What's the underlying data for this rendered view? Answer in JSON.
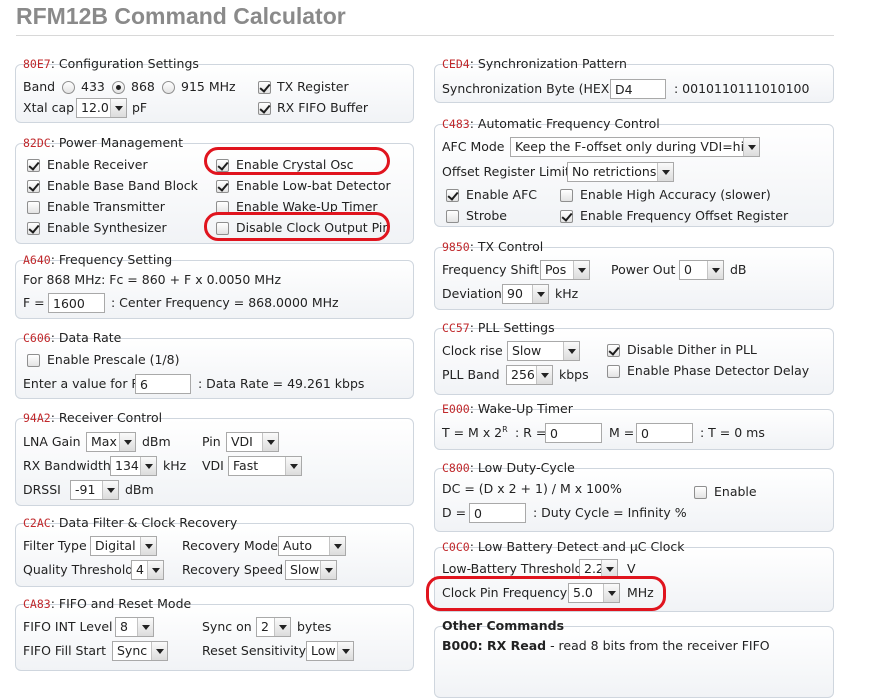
{
  "title": "RFM12B Command Calculator",
  "config": {
    "code": "80E7",
    "title": ": Configuration Settings",
    "band_label": "Band",
    "band_433": "433",
    "band_868": "868",
    "band_915": "915 MHz",
    "xtal_label": "Xtal cap",
    "xtal_value": "12.0",
    "xtal_unit": "pF",
    "tx_register": "TX Register",
    "rx_fifo": "RX FIFO Buffer"
  },
  "power": {
    "code": "82DC",
    "title": ": Power Management",
    "receiver": "Enable Receiver",
    "crystal": "Enable Crystal Osc",
    "baseband": "Enable Base Band Block",
    "lowbat": "Enable Low-bat Detector",
    "transmitter": "Enable Transmitter",
    "wakeup": "Enable Wake-Up Timer",
    "synth": "Enable Synthesizer",
    "clkout": "Disable Clock Output Pin"
  },
  "freq": {
    "code": "A640",
    "title": ": Frequency Setting",
    "formula": "For 868 MHz: Fc = 860 + F x 0.0050 MHz",
    "f_label": "F =",
    "f_value": "1600",
    "center": ": Center Frequency = 868.0000 MHz"
  },
  "datarate": {
    "code": "C606",
    "title": ": Data Rate",
    "prescale": "Enable Prescale (1/8)",
    "r_label": "Enter a value for R",
    "r_value": "6",
    "rate": ": Data Rate = 49.261 kbps"
  },
  "rxctrl": {
    "code": "94A2",
    "title": ": Receiver Control",
    "lna_label": "LNA Gain",
    "lna_value": "Max",
    "lna_unit": "dBm",
    "pin_label": "Pin",
    "pin_value": "VDI",
    "bw_label": "RX Bandwidth",
    "bw_value": "134",
    "bw_unit": "kHz",
    "vdi_label": "VDI",
    "vdi_value": "Fast",
    "drssi_label": "DRSSI",
    "drssi_value": "-91",
    "drssi_unit": "dBm"
  },
  "filter": {
    "code": "C2AC",
    "title": ": Data Filter & Clock Recovery",
    "type_label": "Filter Type",
    "type_value": "Digital",
    "mode_label": "Recovery Mode",
    "mode_value": "Auto",
    "qt_label": "Quality Threshold",
    "qt_value": "4",
    "speed_label": "Recovery Speed",
    "speed_value": "Slow"
  },
  "fifo": {
    "code": "CA83",
    "title": ": FIFO and Reset Mode",
    "int_label": "FIFO INT Level",
    "int_value": "8",
    "sync_label": "Sync on",
    "sync_value": "2",
    "sync_unit": "bytes",
    "fill_label": "FIFO Fill Start",
    "fill_value": "Sync",
    "reset_label": "Reset Sensitivity",
    "reset_value": "Low"
  },
  "syncpat": {
    "code": "CED4",
    "title": ": Synchronization Pattern",
    "label": "Synchronization Byte (HEX)",
    "value": "D4",
    "binary": ": 0010110111010100"
  },
  "afc": {
    "code": "C483",
    "title": ": Automatic Frequency Control",
    "mode_label": "AFC Mode",
    "mode_value": "Keep the F-offset only during VDI=high",
    "limit_label": "Offset Register Limit",
    "limit_value": "No retrictions",
    "enable": "Enable AFC",
    "high_acc": "Enable High Accuracy (slower)",
    "strobe": "Strobe",
    "offset_reg": "Enable Frequency Offset Register"
  },
  "tx": {
    "code": "9850",
    "title": ": TX Control",
    "shift_label": "Frequency Shift",
    "shift_value": "Pos",
    "power_label": "Power Out",
    "power_value": "0",
    "power_unit": "dB",
    "dev_label": "Deviation",
    "dev_value": "90",
    "dev_unit": "kHz"
  },
  "pll": {
    "code": "CC57",
    "title": ": PLL Settings",
    "rise_label": "Clock rise",
    "rise_value": "Slow",
    "dither": "Disable Dither in PLL",
    "band_label": "PLL Band",
    "band_value": "256",
    "band_unit": "kbps",
    "phase": "Enable Phase Detector Delay"
  },
  "wake": {
    "code": "E000",
    "title": ": Wake-Up Timer",
    "t_label": "T = M x 2",
    "t_sup": "R",
    "r_label": ": R =",
    "r_value": "0",
    "m_label": "M =",
    "m_value": "0",
    "t_result": ": T = 0 ms"
  },
  "duty": {
    "code": "C800",
    "title": ": Low Duty-Cycle",
    "formula": "DC = (D x 2 + 1) / M x 100%",
    "enable": "Enable",
    "d_label": "D =",
    "d_value": "0",
    "result": ": Duty Cycle = Infinity %"
  },
  "lowbat": {
    "code": "C0C0",
    "title": ": Low Battery Detect and µC Clock",
    "thr_label": "Low-Battery Threshold",
    "thr_value": "2.2",
    "thr_unit": "V",
    "clk_label": "Clock Pin Frequency",
    "clk_value": "5.0",
    "clk_unit": "MHz"
  },
  "other": {
    "title": "Other Commands",
    "b000": "B000",
    "b000_title": ": RX Read",
    "b000_desc": "- read 8 bits from the receiver FIFO"
  },
  "colors": {
    "title": "#8a8a8a",
    "code": "#c0282b",
    "box_border": "#cfd6de",
    "highlight": "#e0141e"
  }
}
